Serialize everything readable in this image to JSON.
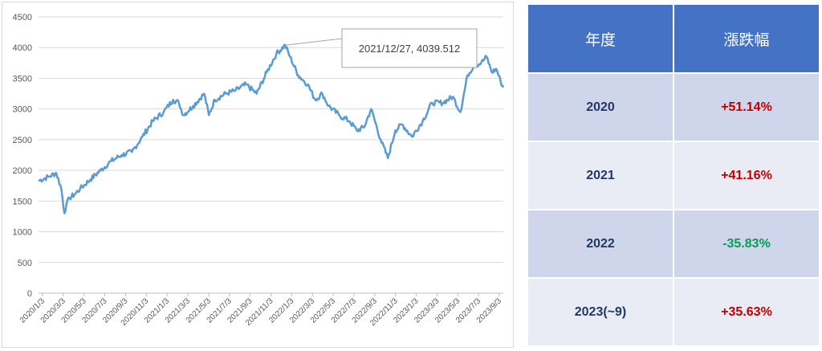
{
  "chart_data": {
    "type": "line",
    "title": "",
    "xlabel": "",
    "ylabel": "",
    "ylim": [
      0,
      4500
    ],
    "y_ticks": [
      "0",
      "500",
      "1000",
      "1500",
      "2000",
      "2500",
      "3000",
      "3500",
      "4000",
      "4500"
    ],
    "x_ticks": [
      "2020/1/3",
      "2020/3/3",
      "2020/5/3",
      "2020/7/3",
      "2020/9/3",
      "2020/11/3",
      "2021/1/3",
      "2021/3/3",
      "2021/5/3",
      "2021/7/3",
      "2021/9/3",
      "2021/11/3",
      "2022/1/3",
      "2022/3/3",
      "2022/5/3",
      "2022/7/3",
      "2022/9/3",
      "2022/11/3",
      "2023/1/3",
      "2023/3/3",
      "2023/5/3",
      "2023/7/3",
      "2023/9/3"
    ],
    "grid": true,
    "line_color": "#5b9bd5",
    "series": [
      {
        "x": [
          "2020-01-03",
          "2020-02-03",
          "2020-02-24",
          "2020-03-10",
          "2020-03-19",
          "2020-03-25",
          "2020-04-03",
          "2020-04-20",
          "2020-05-04",
          "2020-06-03",
          "2020-07-03",
          "2020-08-03",
          "2020-09-03",
          "2020-10-03",
          "2020-11-03",
          "2020-12-03",
          "2021-01-04",
          "2021-02-01",
          "2021-02-18",
          "2021-03-03",
          "2021-04-01",
          "2021-05-03",
          "2021-05-17",
          "2021-06-03",
          "2021-07-05",
          "2021-08-03",
          "2021-09-03",
          "2021-10-04",
          "2021-11-03",
          "2021-12-01",
          "2021-12-27",
          "2022-01-10",
          "2022-02-03",
          "2022-03-03",
          "2022-03-25",
          "2022-04-15",
          "2022-05-03",
          "2022-06-03",
          "2022-07-04",
          "2022-07-25",
          "2022-08-15",
          "2022-09-05",
          "2022-10-03",
          "2022-10-24",
          "2022-11-15",
          "2022-12-05",
          "2023-01-03",
          "2023-02-03",
          "2023-03-03",
          "2023-04-03",
          "2023-05-03",
          "2023-05-25",
          "2023-06-15",
          "2023-07-03",
          "2023-07-25",
          "2023-08-10",
          "2023-08-25",
          "2023-09-08",
          "2023-09-20",
          "2023-09-28"
        ],
        "values": [
          1830,
          1900,
          1960,
          1700,
          1300,
          1450,
          1550,
          1620,
          1700,
          1850,
          2000,
          2150,
          2250,
          2300,
          2550,
          2800,
          2950,
          3150,
          3100,
          2900,
          3050,
          3250,
          2900,
          3150,
          3250,
          3300,
          3400,
          3250,
          3600,
          3900,
          4039.512,
          3850,
          3550,
          3400,
          3150,
          3250,
          3050,
          2900,
          2800,
          2650,
          2700,
          3000,
          2500,
          2200,
          2650,
          2750,
          2550,
          2800,
          3100,
          3100,
          3200,
          2950,
          3550,
          3700,
          3750,
          3850,
          3600,
          3650,
          3450,
          3350
        ]
      }
    ],
    "annotation": {
      "text": "2021/12/27, 4039.512",
      "x": "2021-12-27",
      "y": 4039.512
    }
  },
  "table": {
    "headers": [
      "年度",
      "漲跌幅"
    ],
    "rows": [
      {
        "year": "2020",
        "change": "+51.14%",
        "sign": "pos"
      },
      {
        "year": "2021",
        "change": "+41.16%",
        "sign": "pos"
      },
      {
        "year": "2022",
        "change": "-35.83%",
        "sign": "neg"
      },
      {
        "year": "2023(~9)",
        "change": "+35.63%",
        "sign": "pos"
      }
    ]
  }
}
